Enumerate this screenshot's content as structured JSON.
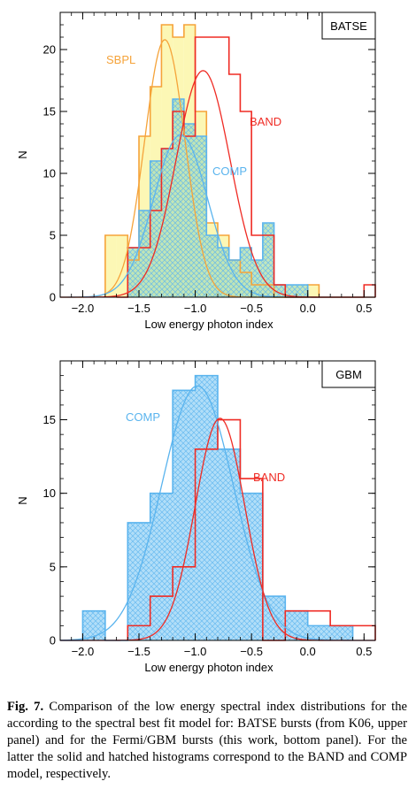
{
  "chart_data": [
    {
      "type": "histogram",
      "panel_label": "BATSE",
      "xlabel": "Low energy photon index",
      "ylabel": "N",
      "xlim": [
        -2.2,
        0.6
      ],
      "ylim": [
        0,
        23
      ],
      "x_ticks": [
        -2.0,
        -1.5,
        -1.0,
        -0.5,
        0.0,
        0.5
      ],
      "x_tick_labels": [
        "−2.0",
        "−1.5",
        "−1.0",
        "−0.5",
        "0.0",
        "0.5"
      ],
      "y_ticks": [
        0,
        5,
        10,
        15,
        20
      ],
      "y_tick_labels": [
        "0",
        "5",
        "10",
        "15",
        "20"
      ],
      "bin_width": 0.1,
      "series": [
        {
          "name": "SBPL",
          "color": "#f5a33a",
          "fill": "#fbf6a8",
          "bins_left": [
            -1.8,
            -1.7,
            -1.6,
            -1.5,
            -1.4,
            -1.3,
            -1.2,
            -1.1,
            -1.0,
            -0.9,
            -0.8,
            -0.7,
            -0.6,
            -0.5,
            -0.4,
            -0.3,
            -0.2,
            -0.1,
            0.0
          ],
          "counts": [
            5,
            5,
            3,
            13,
            17,
            22,
            21,
            22,
            15,
            6,
            5,
            3,
            2,
            1,
            1,
            0,
            0,
            0,
            1
          ],
          "fit_curve": {
            "mu": -1.27,
            "sigma": 0.18,
            "peak": 20.8
          }
        },
        {
          "name": "COMP",
          "color": "#5ab4ee",
          "fill": "#b9e3b6",
          "hatched": true,
          "bins_left": [
            -1.6,
            -1.5,
            -1.4,
            -1.3,
            -1.2,
            -1.1,
            -1.0,
            -0.9,
            -0.8,
            -0.7,
            -0.6,
            -0.5,
            -0.4,
            -0.3,
            -0.2,
            -0.1
          ],
          "counts": [
            4,
            7,
            11,
            12,
            16,
            14,
            13,
            5,
            4,
            3,
            4,
            3,
            6,
            1,
            1,
            1
          ],
          "fit_curve": {
            "mu": -1.13,
            "sigma": 0.24,
            "peak": 13.1
          }
        },
        {
          "name": "BAND",
          "color": "#ef2b24",
          "bins_left": [
            -1.7,
            -1.6,
            -1.5,
            -1.4,
            -1.3,
            -1.2,
            -1.1,
            -1.0,
            -0.9,
            -0.8,
            -0.7,
            -0.6,
            -0.5,
            -0.4,
            -0.3,
            -0.2,
            -0.1,
            0.0,
            0.1,
            0.2,
            0.3,
            0.4,
            0.5
          ],
          "counts": [
            0,
            4,
            4,
            7,
            12,
            15,
            13,
            21,
            21,
            21,
            18,
            15,
            5,
            5,
            1,
            0,
            0,
            0,
            0,
            0,
            0,
            0,
            1
          ],
          "fit_curve": {
            "mu": -0.93,
            "sigma": 0.24,
            "peak": 18.3
          }
        }
      ]
    },
    {
      "type": "histogram",
      "panel_label": "GBM",
      "xlabel": "Low energy photon index",
      "ylabel": "N",
      "xlim": [
        -2.2,
        0.6
      ],
      "ylim": [
        0,
        19
      ],
      "x_ticks": [
        -2.0,
        -1.5,
        -1.0,
        -0.5,
        0.0,
        0.5
      ],
      "x_tick_labels": [
        "−2.0",
        "−1.5",
        "−1.0",
        "−0.5",
        "0.0",
        "0.5"
      ],
      "y_ticks": [
        0,
        5,
        10,
        15
      ],
      "y_tick_labels": [
        "0",
        "5",
        "10",
        "15"
      ],
      "bin_width": 0.2,
      "series": [
        {
          "name": "COMP",
          "color": "#5ab4ee",
          "fill": "#a9daf7",
          "hatched": true,
          "bins_left": [
            -2.2,
            -2.0,
            -1.8,
            -1.6,
            -1.4,
            -1.2,
            -1.0,
            -0.8,
            -0.6,
            -0.4,
            -0.2,
            0.0,
            0.2
          ],
          "counts": [
            0,
            2,
            0,
            8,
            10,
            17,
            18,
            13,
            10,
            3,
            2,
            1,
            1
          ],
          "fit_curve": {
            "mu": -0.98,
            "sigma": 0.32,
            "peak": 17.3
          }
        },
        {
          "name": "BAND",
          "color": "#ef2b24",
          "bins_left": [
            -1.6,
            -1.4,
            -1.2,
            -1.0,
            -0.8,
            -0.6,
            -0.4,
            -0.2,
            0.0,
            0.2,
            0.4
          ],
          "counts": [
            1,
            3,
            5,
            13,
            15,
            11,
            0,
            2,
            2,
            1,
            1
          ],
          "fit_curve": {
            "mu": -0.78,
            "sigma": 0.22,
            "peak": 15.1
          }
        }
      ]
    }
  ],
  "caption": {
    "label": "Fig. 7.",
    "text": "Comparison of the low energy spectral index distributions for the according to the spectral best fit model for: BATSE bursts (from K06, upper panel) and for the Fermi/GBM bursts (this work, bottom panel). For the latter the solid and hatched histograms correspond to the BAND and COMP model, respectively."
  }
}
